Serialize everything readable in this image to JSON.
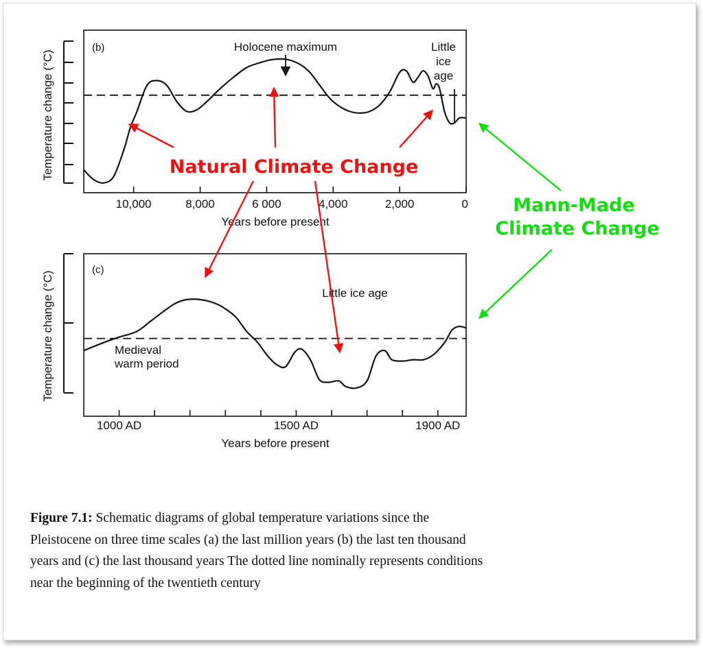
{
  "chart_data": [
    {
      "type": "line",
      "panel_label": "(b)",
      "ylabel": "Temperature change (°C)",
      "xlabel": "Years before present",
      "x_ticks": [
        10000,
        8000,
        6000,
        4000,
        2000,
        0
      ],
      "x_tick_labels": [
        "10,000",
        "8,000",
        "6 000",
        "4,000",
        "2,000",
        "0"
      ],
      "xlim": [
        11500,
        0
      ],
      "ylim": [
        -3,
        2
      ],
      "baseline": 0,
      "annotations": [
        "Holocene maximum",
        "Little",
        "ice",
        "age"
      ],
      "series": [
        {
          "x": [
            11500,
            11200,
            10900,
            10600,
            10300,
            10100,
            9900,
            9600,
            9300,
            9000,
            8700,
            8400,
            8100,
            7800,
            7400,
            7000,
            6600,
            6200,
            5800,
            5400,
            5000,
            4700,
            4400,
            4100,
            3800,
            3500,
            3200,
            2900,
            2600,
            2300,
            2000,
            1800,
            1600,
            1450,
            1300,
            1150,
            1000,
            900,
            800,
            650,
            500,
            350,
            200,
            0
          ],
          "y": [
            -2.3,
            -2.6,
            -2.7,
            -2.5,
            -1.7,
            -1.0,
            -0.5,
            0.3,
            0.45,
            0.3,
            -0.2,
            -0.5,
            -0.45,
            -0.2,
            0.2,
            0.55,
            0.85,
            1.0,
            1.1,
            1.1,
            0.95,
            0.7,
            0.3,
            -0.1,
            -0.35,
            -0.5,
            -0.55,
            -0.5,
            -0.3,
            0.1,
            0.7,
            0.75,
            0.4,
            0.55,
            0.75,
            0.6,
            0.2,
            0.35,
            0.2,
            -0.5,
            -0.85,
            -0.85,
            -0.7,
            -0.7
          ]
        }
      ]
    },
    {
      "type": "line",
      "panel_label": "(c)",
      "ylabel": "Temperature change (°C)",
      "xlabel": "Years before present",
      "x_ticks": [
        1000,
        1100,
        1200,
        1300,
        1400,
        1500,
        1600,
        1700,
        1800,
        1900
      ],
      "x_tick_labels": [
        "1000 AD",
        "",
        "",
        "",
        "",
        "1500 AD",
        "",
        "",
        "",
        "1900 AD"
      ],
      "xlim": [
        900,
        1980
      ],
      "ylim": [
        -1.1,
        1.2
      ],
      "baseline": 0,
      "annotations": [
        "Little ice age",
        "Medieval",
        "warm period"
      ],
      "series": [
        {
          "x": [
            900,
            960,
            1000,
            1050,
            1090,
            1130,
            1160,
            1190,
            1230,
            1270,
            1300,
            1330,
            1360,
            1390,
            1420,
            1445,
            1470,
            1495,
            1515,
            1540,
            1565,
            1590,
            1620,
            1640,
            1670,
            1700,
            1725,
            1750,
            1770,
            1800,
            1830,
            1860,
            1890,
            1920,
            1940,
            1960,
            1980
          ],
          "y": [
            -0.17,
            -0.05,
            0.02,
            0.1,
            0.25,
            0.4,
            0.5,
            0.55,
            0.55,
            0.5,
            0.42,
            0.3,
            0.1,
            -0.05,
            -0.25,
            -0.37,
            -0.4,
            -0.2,
            -0.15,
            -0.3,
            -0.58,
            -0.62,
            -0.6,
            -0.68,
            -0.7,
            -0.6,
            -0.25,
            -0.17,
            -0.3,
            -0.32,
            -0.3,
            -0.3,
            -0.22,
            -0.05,
            0.12,
            0.17,
            0.15
          ]
        }
      ]
    }
  ],
  "overlay": {
    "natural_label": "Natural Climate Change",
    "mann_label_line1": "Mann-Made",
    "mann_label_line2": "Climate Change",
    "red_color": "#ee1111",
    "green_color": "#11dd11"
  },
  "caption": {
    "label": "Figure 7.1:",
    "text": "Schematic diagrams of global temperature variations since the Pleistocene on three time scales (a) the last million years (b) the last ten thousand years and (c) the last thousand years The dotted line nominally represents conditions near the beginning of the twentieth century"
  }
}
